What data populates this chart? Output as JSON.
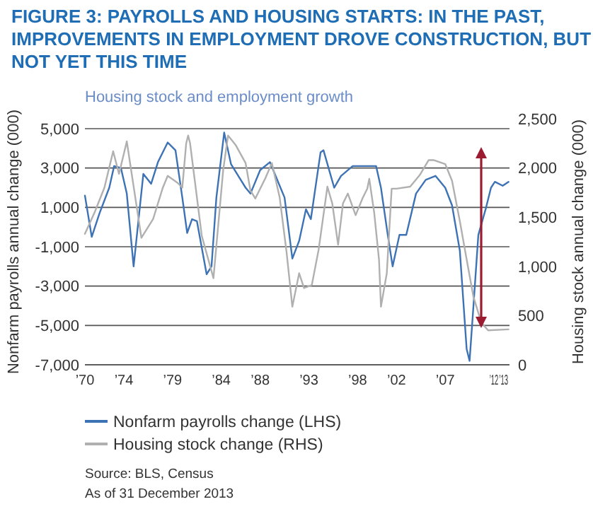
{
  "chart_data": {
    "type": "line",
    "title": "FIGURE 3: PAYROLLS AND HOUSING STARTS: IN THE PAST, IMPROVEMENTS IN EMPLOYMENT DROVE CONSTRUCTION, BUT NOT YET THIS TIME",
    "subtitle": "Housing stock and employment growth",
    "ylabel": "Nonfarm payrolls annual change (000)",
    "y2label": "Housing stock annual change (000)",
    "xlim": [
      1970,
      2013.6
    ],
    "xticks": [
      {
        "value": 1970,
        "label": "’70"
      },
      {
        "value": 1974,
        "label": "’74"
      },
      {
        "value": 1979,
        "label": "’79"
      },
      {
        "value": 1984,
        "label": "’84"
      },
      {
        "value": 1988,
        "label": "’88"
      },
      {
        "value": 1993,
        "label": "’93"
      },
      {
        "value": 1998,
        "label": "’98"
      },
      {
        "value": 2002,
        "label": "’02"
      },
      {
        "value": 2007,
        "label": "’07"
      },
      {
        "value": 2012,
        "label": "’12"
      },
      {
        "value": 2013,
        "label": "’13"
      }
    ],
    "ylim": [
      -7000,
      5000
    ],
    "yticks": [
      {
        "value": -7000,
        "label": "-7,000"
      },
      {
        "value": -5000,
        "label": "-5,000"
      },
      {
        "value": -3000,
        "label": "-3,000"
      },
      {
        "value": -1000,
        "label": "-1,000"
      },
      {
        "value": 1000,
        "label": "1,000"
      },
      {
        "value": 3000,
        "label": "3,000"
      },
      {
        "value": 5000,
        "label": "5,000"
      }
    ],
    "y2lim": [
      0,
      2500
    ],
    "y2ticks": [
      0,
      500,
      {
        "value": 1000,
        "label": "1,000"
      },
      {
        "value": 1500,
        "label": "1,500"
      },
      {
        "value": 2000,
        "label": "2,000"
      },
      {
        "value": 2500,
        "label": "2,500"
      }
    ],
    "grid": "y",
    "legend": "bottom",
    "line_style": "solid",
    "marker": "none",
    "series": [
      {
        "name": "Nonfarm payrolls change (LHS)",
        "color": "#3d73b5",
        "x": [
          1970,
          1970.7,
          1971.5,
          1972.5,
          1973,
          1973.7,
          1974.3,
          1975,
          1976,
          1976.8,
          1977.5,
          1978.5,
          1979.3,
          1980,
          1980.5,
          1981,
          1981.5,
          1982.5,
          1983,
          1983.5,
          1984.3,
          1985,
          1986.5,
          1987,
          1988,
          1989,
          1990,
          1990.5,
          1991.3,
          1992,
          1992.7,
          1993.2,
          1994.2,
          1994.5,
          1995.6,
          1996.3,
          1997.5,
          1999.9,
          2000.4,
          2001.1,
          2001.6,
          2002.3,
          2003,
          2004,
          2005,
          2006,
          2007,
          2007.7,
          2008.5,
          2009.2,
          2009.5,
          2009.9,
          2010.4,
          2011.2,
          2011.7,
          2012.1,
          2012.9,
          2013.5
        ],
        "values": [
          1600,
          -500,
          700,
          2000,
          3100,
          3000,
          1700,
          -2000,
          2700,
          2200,
          3300,
          4300,
          3900,
          1500,
          -300,
          400,
          300,
          -2400,
          -2000,
          1500,
          4800,
          3200,
          2000,
          1700,
          2900,
          3300,
          2100,
          1500,
          -1600,
          -700,
          900,
          400,
          3800,
          3900,
          2000,
          2600,
          3100,
          3100,
          2000,
          -400,
          -2000,
          -400,
          -400,
          1700,
          2400,
          2600,
          2000,
          1100,
          -1200,
          -6200,
          -6800,
          -4000,
          -400,
          1000,
          2000,
          2300,
          2100,
          2300
        ]
      },
      {
        "name": "Housing stock change (RHS)",
        "color": "#b0b0b0",
        "axis": "y2",
        "x": [
          1970,
          1971,
          1972,
          1972.9,
          1973.5,
          1974.3,
          1975.8,
          1977,
          1978,
          1978.5,
          1979.5,
          1980,
          1980.4,
          1980.6,
          1980.8,
          1982,
          1983.2,
          1984.2,
          1984.7,
          1985.5,
          1986.5,
          1987,
          1987.5,
          1988.5,
          1989.2,
          1990,
          1990.7,
          1991.3,
          1992,
          1992.5,
          1993.3,
          1994,
          1994.9,
          1995.4,
          1996,
          1996.5,
          1997,
          1997.8,
          1998.5,
          1999,
          1999.2,
          1999.7,
          2000.2,
          2000.4,
          2001,
          2001.5,
          2002,
          2003.4,
          2004.4,
          2005.3,
          2005.8,
          2007,
          2007.7,
          2008.5,
          2009.2,
          2009.9,
          2010.7,
          2011.4,
          2013.5
        ],
        "values": [
          1330,
          1550,
          1800,
          2170,
          1940,
          2270,
          1290,
          1480,
          1800,
          1920,
          1850,
          1800,
          2250,
          2330,
          2250,
          1310,
          880,
          1980,
          2330,
          2230,
          2050,
          1770,
          1690,
          1890,
          2050,
          1700,
          1150,
          590,
          930,
          780,
          810,
          1170,
          1810,
          1640,
          1220,
          1640,
          1740,
          1520,
          1690,
          1790,
          1890,
          1550,
          1070,
          590,
          930,
          1790,
          1790,
          1810,
          1930,
          2080,
          2080,
          2040,
          1870,
          1460,
          1070,
          690,
          430,
          350,
          360
        ]
      }
    ],
    "annotations": [
      "Source: BLS, Census",
      "As of 31 December 2013"
    ]
  }
}
